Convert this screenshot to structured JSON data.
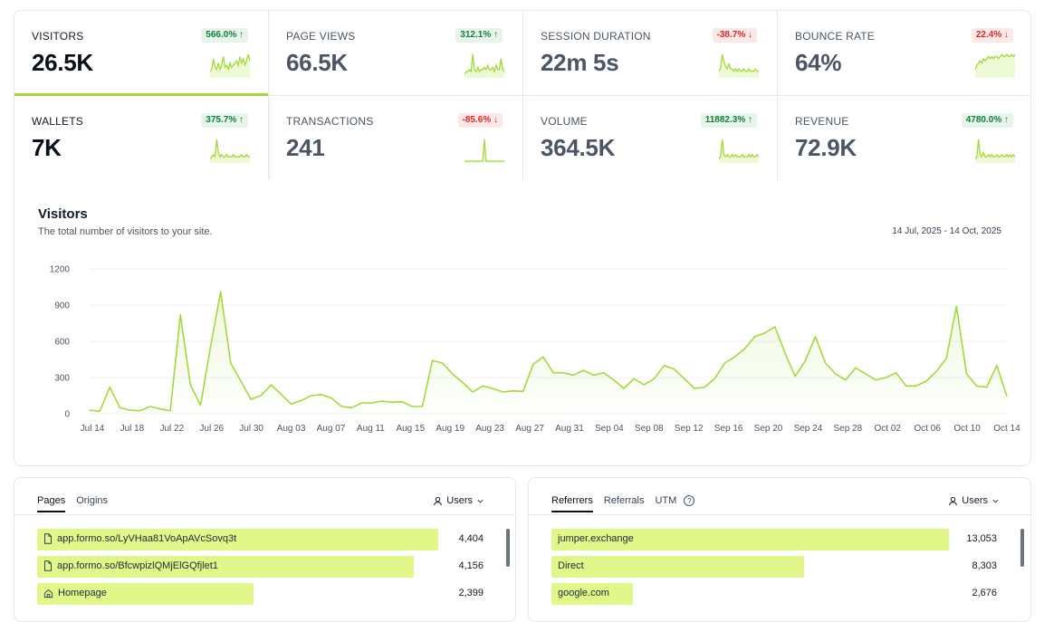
{
  "metrics": [
    {
      "label": "VISITORS",
      "value": "26.5K",
      "change": "566.0% ↑",
      "trend": "up",
      "spark": [
        2,
        3,
        8,
        4,
        3,
        6,
        3,
        5,
        9,
        4,
        5,
        3,
        6,
        4,
        5,
        6,
        7,
        5,
        9,
        6,
        8,
        5,
        7,
        10,
        7
      ]
    },
    {
      "label": "PAGE VIEWS",
      "value": "66.5K",
      "change": "312.1% ↑",
      "trend": "up",
      "spark": [
        1,
        2,
        2,
        3,
        2,
        10,
        3,
        2,
        4,
        2,
        3,
        3,
        4,
        3,
        5,
        3,
        3,
        4,
        2,
        5,
        3,
        3,
        8,
        3,
        2
      ]
    },
    {
      "label": "SESSION DURATION",
      "value": "22m 5s",
      "change": "-38.7% ↓",
      "trend": "down",
      "spark": [
        2,
        3,
        9,
        6,
        4,
        3,
        5,
        3,
        3,
        2,
        3,
        2,
        3,
        2,
        2,
        3,
        2,
        2,
        3,
        2,
        2,
        2,
        3,
        2,
        2
      ]
    },
    {
      "label": "BOUNCE RATE",
      "value": "64%",
      "change": "22.4% ↓",
      "trend": "down",
      "spark": [
        3,
        5,
        6,
        7,
        6,
        8,
        7,
        8,
        9,
        8,
        9,
        8,
        9,
        9,
        8,
        9,
        10,
        9,
        9,
        10,
        9,
        9,
        10,
        9,
        10
      ]
    },
    {
      "label": "WALLETS",
      "value": "7K",
      "change": "375.7% ↑",
      "trend": "up",
      "spark": [
        1,
        2,
        3,
        2,
        10,
        4,
        2,
        3,
        2,
        2,
        3,
        2,
        2,
        2,
        3,
        2,
        2,
        2,
        2,
        3,
        2,
        2,
        3,
        2,
        2
      ]
    },
    {
      "label": "TRANSACTIONS",
      "value": "241",
      "change": "-85.6% ↓",
      "trend": "down",
      "spark": [
        0,
        0,
        0,
        0,
        0,
        0,
        0,
        0,
        0,
        0,
        0,
        0,
        12,
        0,
        0,
        0,
        0,
        0,
        0,
        0,
        0,
        0,
        0,
        0,
        0
      ]
    },
    {
      "label": "VOLUME",
      "value": "364.5K",
      "change": "11882.3% ↑",
      "trend": "up",
      "spark": [
        1,
        2,
        10,
        3,
        2,
        3,
        2,
        2,
        3,
        2,
        3,
        2,
        2,
        2,
        3,
        2,
        2,
        2,
        3,
        2,
        3,
        2,
        2,
        3,
        2
      ]
    },
    {
      "label": "REVENUE",
      "value": "72.9K",
      "change": "4780.0% ↑",
      "trend": "up",
      "spark": [
        1,
        2,
        10,
        3,
        2,
        4,
        2,
        2,
        3,
        2,
        3,
        2,
        2,
        3,
        2,
        2,
        3,
        2,
        2,
        3,
        2,
        3,
        2,
        3,
        2
      ]
    }
  ],
  "chart": {
    "title": "Visitors",
    "subtitle": "The total number of visitors to your site.",
    "range": "14 Jul, 2025 - 14 Oct, 2025"
  },
  "chart_data": {
    "type": "area",
    "x_tick_labels": [
      "Jul 14",
      "Jul 18",
      "Jul 22",
      "Jul 26",
      "Jul 30",
      "Aug 03",
      "Aug 07",
      "Aug 11",
      "Aug 15",
      "Aug 19",
      "Aug 23",
      "Aug 27",
      "Aug 31",
      "Sep 04",
      "Sep 08",
      "Sep 12",
      "Sep 16",
      "Sep 20",
      "Sep 24",
      "Sep 28",
      "Oct 02",
      "Oct 06",
      "Oct 10",
      "Oct 14"
    ],
    "y_ticks": [
      0,
      300,
      600,
      900,
      1200
    ],
    "ylim": [
      0,
      1200
    ],
    "color": "#a3d93c",
    "series": [
      {
        "values": [
          30,
          20,
          220,
          50,
          30,
          25,
          60,
          40,
          25,
          820,
          240,
          70,
          560,
          1010,
          420,
          270,
          120,
          150,
          240,
          160,
          80,
          110,
          150,
          160,
          130,
          60,
          50,
          90,
          90,
          105,
          95,
          100,
          60,
          60,
          440,
          420,
          330,
          260,
          180,
          230,
          210,
          180,
          190,
          185,
          410,
          470,
          340,
          340,
          320,
          360,
          320,
          340,
          280,
          210,
          290,
          240,
          290,
          400,
          370,
          290,
          210,
          220,
          290,
          420,
          470,
          540,
          640,
          670,
          720,
          500,
          310,
          440,
          640,
          420,
          330,
          280,
          380,
          330,
          280,
          300,
          340,
          230,
          230,
          270,
          350,
          460,
          890,
          330,
          230,
          220,
          400,
          145
        ]
      }
    ]
  },
  "pages_panel": {
    "tabs": [
      "Pages",
      "Origins"
    ],
    "users_label": "Users",
    "rows": [
      {
        "label": "app.formo.so/LyVHaa81VoApAVcSovq3t",
        "count": "4,404",
        "ratio": 1.0,
        "icon": "file-icon"
      },
      {
        "label": "app.formo.so/BfcwpizlQMjElGQfjlet1",
        "count": "4,156",
        "ratio": 0.94,
        "icon": "file-icon"
      },
      {
        "label": "Homepage",
        "count": "2,399",
        "ratio": 0.54,
        "icon": "home-icon"
      }
    ]
  },
  "referrers_panel": {
    "tabs": [
      "Referrers",
      "Referrals",
      "UTM"
    ],
    "users_label": "Users",
    "rows": [
      {
        "label": "jumper.exchange",
        "count": "13,053",
        "ratio": 1.0
      },
      {
        "label": "Direct",
        "count": "8,303",
        "ratio": 0.636
      },
      {
        "label": "google.com",
        "count": "2,676",
        "ratio": 0.205
      }
    ]
  }
}
